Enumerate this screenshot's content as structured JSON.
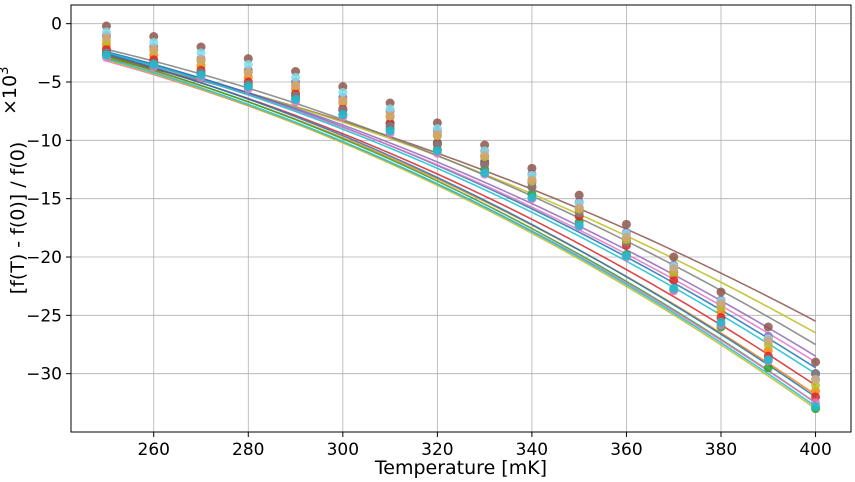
{
  "chart_data": {
    "type": "scatter",
    "title": "",
    "xlabel": "Temperature [mK]",
    "ylabel": "[f(T) - f(0)] / f(0)",
    "y_multiplier": "×10",
    "y_multiplier_exp": "3",
    "xlim": [
      242.5,
      407.5
    ],
    "ylim": [
      -35,
      1.6
    ],
    "x_ticks": [
      260,
      280,
      300,
      320,
      340,
      360,
      380,
      400
    ],
    "y_ticks": [
      0,
      -5,
      -10,
      -15,
      -20,
      -25,
      -30
    ],
    "grid": true,
    "legend": "none",
    "temperatures": [
      250,
      260,
      270,
      280,
      290,
      300,
      310,
      320,
      330,
      340,
      350,
      360,
      370,
      380,
      390,
      400
    ],
    "series": [
      {
        "color": "#1f77b4",
        "values": [
          -2.4,
          -3.3,
          -4.2,
          -5.2,
          -6.2,
          -7.4,
          -8.5,
          -10.2,
          -11.8,
          -13.6,
          -15.8,
          -18.5,
          -21.3,
          -24.0,
          -27.0,
          -30.0
        ]
      },
      {
        "color": "#ff7f0e",
        "values": [
          -1.8,
          -2.7,
          -3.6,
          -4.6,
          -5.6,
          -6.8,
          -8.0,
          -9.6,
          -11.4,
          -13.4,
          -15.9,
          -18.6,
          -21.5,
          -24.7,
          -28.0,
          -31.5
        ]
      },
      {
        "color": "#2ca02c",
        "values": [
          -2.6,
          -3.5,
          -4.4,
          -5.4,
          -6.5,
          -7.8,
          -9.0,
          -10.8,
          -12.5,
          -14.6,
          -17.0,
          -19.8,
          -22.8,
          -26.0,
          -29.5,
          -33.0
        ]
      },
      {
        "color": "#d62728",
        "values": [
          -2.2,
          -3.1,
          -4.0,
          -5.0,
          -6.0,
          -7.3,
          -8.6,
          -10.3,
          -12.0,
          -14.0,
          -16.5,
          -19.0,
          -22.0,
          -25.2,
          -28.5,
          -32.0
        ]
      },
      {
        "color": "#9467bd",
        "values": [
          -1.0,
          -2.0,
          -3.0,
          -4.0,
          -5.0,
          -6.3,
          -7.5,
          -9.2,
          -10.9,
          -12.9,
          -15.3,
          -17.9,
          -20.7,
          -23.7,
          -26.8,
          -30.0
        ]
      },
      {
        "color": "#8c564b",
        "values": [
          -0.2,
          -1.1,
          -2.0,
          -3.0,
          -4.1,
          -5.4,
          -6.8,
          -8.5,
          -10.4,
          -12.4,
          -14.7,
          -17.2,
          -20.0,
          -23.0,
          -26.0,
          -29.0
        ]
      },
      {
        "color": "#e377c2",
        "values": [
          -2.9,
          -3.7,
          -4.6,
          -5.6,
          -6.7,
          -8.0,
          -9.4,
          -11.1,
          -12.9,
          -15.0,
          -17.4,
          -20.0,
          -22.9,
          -25.8,
          -28.9,
          -32.5
        ]
      },
      {
        "color": "#7f7f7f",
        "values": [
          -2.5,
          -3.4,
          -4.2,
          -5.2,
          -6.2,
          -7.4,
          -8.8,
          -10.4,
          -12.1,
          -14.0,
          -16.2,
          -18.7,
          -21.3,
          -24.1,
          -27.0,
          -30.0
        ]
      },
      {
        "color": "#bcbd22",
        "values": [
          -1.5,
          -2.3,
          -3.2,
          -4.2,
          -5.3,
          -6.6,
          -7.9,
          -9.6,
          -11.4,
          -13.5,
          -15.9,
          -18.5,
          -21.3,
          -24.3,
          -27.5,
          -31.0
        ]
      },
      {
        "color": "#17becf",
        "values": [
          -2.7,
          -3.5,
          -4.4,
          -5.4,
          -6.5,
          -7.8,
          -9.2,
          -10.9,
          -12.8,
          -14.9,
          -17.3,
          -19.9,
          -22.7,
          -25.6,
          -28.8,
          -32.8
        ]
      },
      {
        "color": "#80deea",
        "values": [
          -0.7,
          -1.6,
          -2.5,
          -3.5,
          -4.6,
          -5.9,
          -7.3,
          -9.0,
          -10.9,
          -13.0,
          -15.4,
          -18.0,
          -20.8,
          -23.8,
          -27.0,
          -30.5
        ]
      },
      {
        "color": "#d4a373",
        "values": [
          -1.2,
          -2.2,
          -3.1,
          -4.2,
          -5.3,
          -6.6,
          -7.9,
          -9.5,
          -11.3,
          -13.4,
          -15.8,
          -18.3,
          -21.0,
          -24.0,
          -27.2,
          -30.5
        ]
      }
    ],
    "fit_curves": [
      {
        "color": "#8c564b",
        "y_start": -3.0,
        "y_end": -25.5
      },
      {
        "color": "#bcbd22",
        "y_start": -2.8,
        "y_end": -26.5
      },
      {
        "color": "#7f7f7f",
        "y_start": -2.2,
        "y_end": -27.5
      },
      {
        "color": "#9467bd",
        "y_start": -2.5,
        "y_end": -28.5
      },
      {
        "color": "#1f77b4",
        "y_start": -2.4,
        "y_end": -29.5
      },
      {
        "color": "#e377c2",
        "y_start": -2.6,
        "y_end": -29.0
      },
      {
        "color": "#17becf",
        "y_start": -2.5,
        "y_end": -30.0
      },
      {
        "color": "#d62728",
        "y_start": -2.7,
        "y_end": -31.0
      },
      {
        "color": "#ff7f0e",
        "y_start": -2.9,
        "y_end": -31.8
      },
      {
        "color": "#2ca02c",
        "y_start": -2.8,
        "y_end": -32.5
      },
      {
        "color": "#e377c2",
        "y_start": -3.2,
        "y_end": -32.5
      },
      {
        "color": "#bcbd22",
        "y_start": -3.1,
        "y_end": -33.0
      },
      {
        "color": "#17becf",
        "y_start": -3.0,
        "y_end": -32.8
      },
      {
        "color": "#1f77b4",
        "y_start": -2.6,
        "y_end": -32.0
      }
    ]
  }
}
